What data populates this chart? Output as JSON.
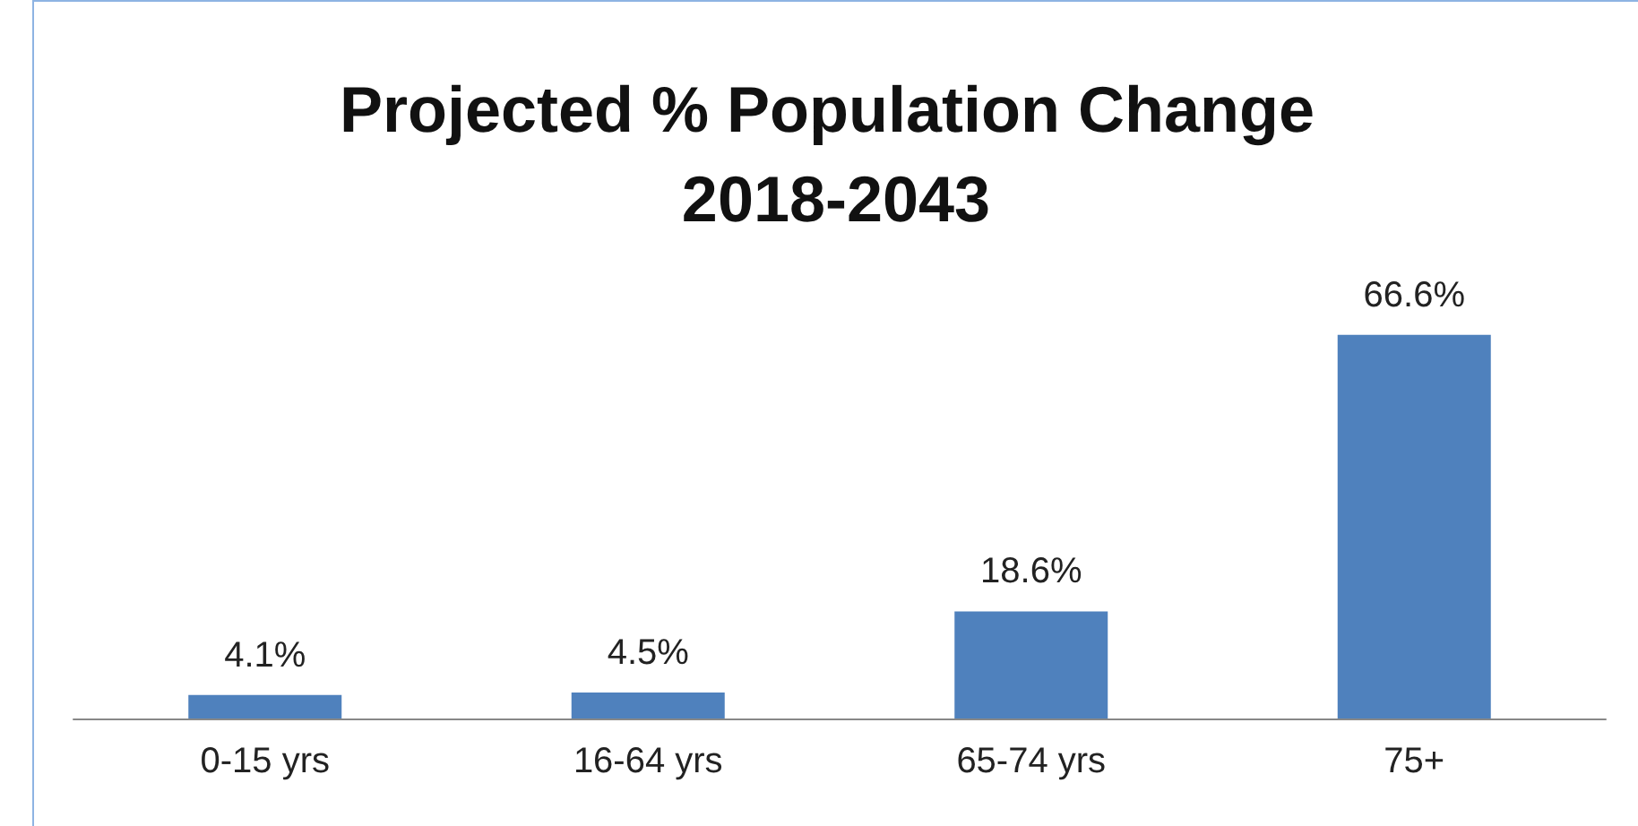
{
  "chart_data": {
    "type": "bar",
    "title": "Projected % Population Change 2018-2043",
    "categories": [
      "0-15 yrs",
      "16-64 yrs",
      "65-74 yrs",
      "75+"
    ],
    "values": [
      4.1,
      4.5,
      18.6,
      66.6
    ],
    "value_labels": [
      "4.1%",
      "4.5%",
      "18.6%",
      "66.6%"
    ],
    "color": "#4f81bd"
  }
}
